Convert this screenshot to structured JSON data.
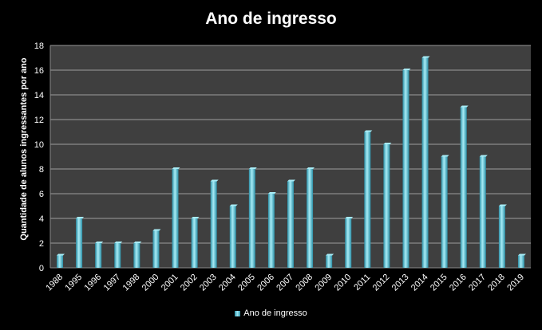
{
  "chart_data": {
    "type": "bar",
    "title": "Ano de ingresso",
    "xlabel": "",
    "ylabel": "Quantidade de alunos ingressantes por ano",
    "categories": [
      "1988",
      "1995",
      "1996",
      "1997",
      "1998",
      "2000",
      "2001",
      "2002",
      "2003",
      "2004",
      "2005",
      "2006",
      "2007",
      "2008",
      "2009",
      "2010",
      "2011",
      "2012",
      "2013",
      "2014",
      "2015",
      "2016",
      "2017",
      "2018",
      "2019"
    ],
    "series": [
      {
        "name": "Ano de ingresso",
        "values": [
          1,
          4,
          2,
          2,
          2,
          3,
          8,
          4,
          7,
          5,
          8,
          6,
          7,
          8,
          1,
          4,
          11,
          10,
          16,
          17,
          9,
          13,
          9,
          5,
          1
        ]
      }
    ],
    "ylim": [
      0,
      18
    ],
    "yticks": [
      0,
      2,
      4,
      6,
      8,
      10,
      12,
      14,
      16,
      18
    ],
    "grid": true,
    "legend": "bottom",
    "colors": {
      "background": "#000000",
      "plot_area": "#3f3f3f",
      "bar": "#5fc8dc",
      "bar_highlight": "#a8ecf6",
      "bar_dark": "#2b8fa6",
      "gridline": "#bdbdbd"
    }
  }
}
